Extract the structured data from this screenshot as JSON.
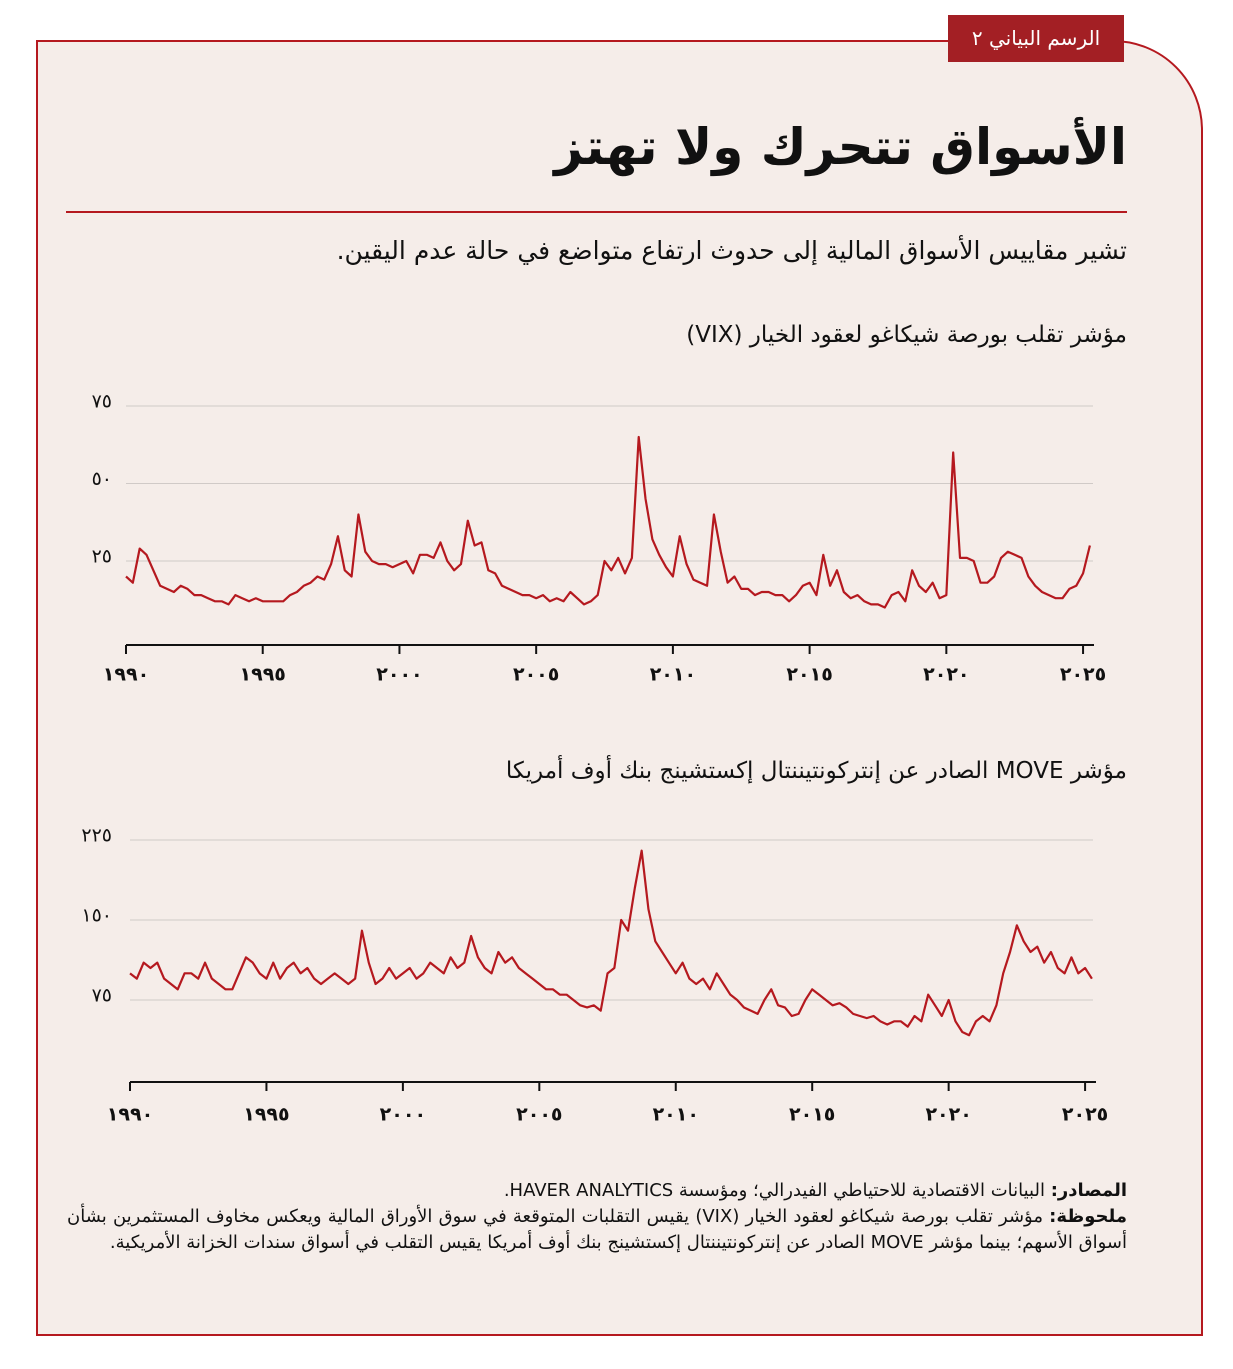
{
  "header": {
    "tab": "الرسم البياني ٢",
    "title": "الأسواق تتحرك ولا تهتز",
    "subtitle": "تشير مقاييس الأسواق المالية إلى حدوث ارتفاع متواضع في حالة عدم اليقين."
  },
  "chart_data": [
    {
      "type": "line",
      "title": "مؤشر تقلب بورصة شيكاغو لعقود الخيار (VIX)",
      "color": "#b5191f",
      "grid": true,
      "xlim": [
        1990,
        2025.4
      ],
      "ylim": [
        0,
        80
      ],
      "xticks": [
        {
          "value": 1990,
          "label": "١٩٩٠"
        },
        {
          "value": 1995,
          "label": "١٩٩٥"
        },
        {
          "value": 2000,
          "label": "٢٠٠٠"
        },
        {
          "value": 2005,
          "label": "٢٠٠٥"
        },
        {
          "value": 2010,
          "label": "٢٠١٠"
        },
        {
          "value": 2015,
          "label": "٢٠١٥"
        },
        {
          "value": 2020,
          "label": "٢٠٢٠"
        },
        {
          "value": 2025,
          "label": "٢٠٢٥"
        }
      ],
      "yticks": [
        {
          "value": 25,
          "label": "٢٥"
        },
        {
          "value": 50,
          "label": "٥٠"
        },
        {
          "value": 75,
          "label": "٧٥"
        }
      ],
      "x": [
        1990,
        1990.25,
        1990.5,
        1990.75,
        1991,
        1991.25,
        1991.5,
        1991.75,
        1992,
        1992.25,
        1992.5,
        1992.75,
        1993,
        1993.25,
        1993.5,
        1993.75,
        1994,
        1994.25,
        1994.5,
        1994.75,
        1995,
        1995.25,
        1995.5,
        1995.75,
        1996,
        1996.25,
        1996.5,
        1996.75,
        1997,
        1997.25,
        1997.5,
        1997.75,
        1998,
        1998.25,
        1998.5,
        1998.75,
        1999,
        1999.25,
        1999.5,
        1999.75,
        2000,
        2000.25,
        2000.5,
        2000.75,
        2001,
        2001.25,
        2001.5,
        2001.75,
        2002,
        2002.25,
        2002.5,
        2002.75,
        2003,
        2003.25,
        2003.5,
        2003.75,
        2004,
        2004.25,
        2004.5,
        2004.75,
        2005,
        2005.25,
        2005.5,
        2005.75,
        2006,
        2006.25,
        2006.5,
        2006.75,
        2007,
        2007.25,
        2007.5,
        2007.75,
        2008,
        2008.25,
        2008.5,
        2008.75,
        2009,
        2009.25,
        2009.5,
        2009.75,
        2010,
        2010.25,
        2010.5,
        2010.75,
        2011,
        2011.25,
        2011.5,
        2011.75,
        2012,
        2012.25,
        2012.5,
        2012.75,
        2013,
        2013.25,
        2013.5,
        2013.75,
        2014,
        2014.25,
        2014.5,
        2014.75,
        2015,
        2015.25,
        2015.5,
        2015.75,
        2016,
        2016.25,
        2016.5,
        2016.75,
        2017,
        2017.25,
        2017.5,
        2017.75,
        2018,
        2018.25,
        2018.5,
        2018.75,
        2019,
        2019.25,
        2019.5,
        2019.75,
        2020,
        2020.25,
        2020.5,
        2020.75,
        2021,
        2021.25,
        2021.5,
        2021.75,
        2022,
        2022.25,
        2022.5,
        2022.75,
        2023,
        2023.25,
        2023.5,
        2023.75,
        2024,
        2024.25,
        2024.5,
        2024.75,
        2025,
        2025.25
      ],
      "values": [
        20,
        18,
        29,
        27,
        22,
        17,
        16,
        15,
        17,
        16,
        14,
        14,
        13,
        12,
        12,
        11,
        14,
        13,
        12,
        13,
        12,
        12,
        12,
        12,
        14,
        15,
        17,
        18,
        20,
        19,
        24,
        33,
        22,
        20,
        40,
        28,
        25,
        24,
        24,
        23,
        24,
        25,
        21,
        27,
        27,
        26,
        31,
        25,
        22,
        24,
        38,
        30,
        31,
        22,
        21,
        17,
        16,
        15,
        14,
        14,
        13,
        14,
        12,
        13,
        12,
        15,
        13,
        11,
        12,
        14,
        25,
        22,
        26,
        21,
        26,
        65,
        45,
        32,
        27,
        23,
        20,
        33,
        24,
        19,
        18,
        17,
        40,
        28,
        18,
        20,
        16,
        16,
        14,
        15,
        15,
        14,
        14,
        12,
        14,
        17,
        18,
        14,
        27,
        17,
        22,
        15,
        13,
        14,
        12,
        11,
        11,
        10,
        14,
        15,
        12,
        22,
        17,
        15,
        18,
        13,
        14,
        60,
        26,
        26,
        25,
        18,
        18,
        20,
        26,
        28,
        27,
        26,
        20,
        17,
        15,
        14,
        13,
        13,
        16,
        17,
        21,
        30
      ]
    },
    {
      "type": "line",
      "title": "مؤشر MOVE الصادر عن إنتركونتيننتال إكستشينج بنك أوف أمريكا",
      "color": "#b5191f",
      "grid": true,
      "xlim": [
        1990,
        2025.4
      ],
      "ylim": [
        0,
        240
      ],
      "xticks": [
        {
          "value": 1990,
          "label": "١٩٩٠"
        },
        {
          "value": 1995,
          "label": "١٩٩٥"
        },
        {
          "value": 2000,
          "label": "٢٠٠٠"
        },
        {
          "value": 2005,
          "label": "٢٠٠٥"
        },
        {
          "value": 2010,
          "label": "٢٠١٠"
        },
        {
          "value": 2015,
          "label": "٢٠١٥"
        },
        {
          "value": 2020,
          "label": "٢٠٢٠"
        },
        {
          "value": 2025,
          "label": "٢٠٢٥"
        }
      ],
      "yticks": [
        {
          "value": 75,
          "label": "٧٥"
        },
        {
          "value": 150,
          "label": "١٥٠"
        },
        {
          "value": 225,
          "label": "٢٢٥"
        }
      ],
      "x": [
        1990,
        1990.25,
        1990.5,
        1990.75,
        1991,
        1991.25,
        1991.5,
        1991.75,
        1992,
        1992.25,
        1992.5,
        1992.75,
        1993,
        1993.25,
        1993.5,
        1993.75,
        1994,
        1994.25,
        1994.5,
        1994.75,
        1995,
        1995.25,
        1995.5,
        1995.75,
        1996,
        1996.25,
        1996.5,
        1996.75,
        1997,
        1997.25,
        1997.5,
        1997.75,
        1998,
        1998.25,
        1998.5,
        1998.75,
        1999,
        1999.25,
        1999.5,
        1999.75,
        2000,
        2000.25,
        2000.5,
        2000.75,
        2001,
        2001.25,
        2001.5,
        2001.75,
        2002,
        2002.25,
        2002.5,
        2002.75,
        2003,
        2003.25,
        2003.5,
        2003.75,
        2004,
        2004.25,
        2004.5,
        2004.75,
        2005,
        2005.25,
        2005.5,
        2005.75,
        2006,
        2006.25,
        2006.5,
        2006.75,
        2007,
        2007.25,
        2007.5,
        2007.75,
        2008,
        2008.25,
        2008.5,
        2008.75,
        2009,
        2009.25,
        2009.5,
        2009.75,
        2010,
        2010.25,
        2010.5,
        2010.75,
        2011,
        2011.25,
        2011.5,
        2011.75,
        2012,
        2012.25,
        2012.5,
        2012.75,
        2013,
        2013.25,
        2013.5,
        2013.75,
        2014,
        2014.25,
        2014.5,
        2014.75,
        2015,
        2015.25,
        2015.5,
        2015.75,
        2016,
        2016.25,
        2016.5,
        2016.75,
        2017,
        2017.25,
        2017.5,
        2017.75,
        2018,
        2018.25,
        2018.5,
        2018.75,
        2019,
        2019.25,
        2019.5,
        2019.75,
        2020,
        2020.25,
        2020.5,
        2020.75,
        2021,
        2021.25,
        2021.5,
        2021.75,
        2022,
        2022.25,
        2022.5,
        2022.75,
        2023,
        2023.25,
        2023.5,
        2023.75,
        2024,
        2024.25,
        2024.5,
        2024.75,
        2025,
        2025.25
      ],
      "values": [
        100,
        95,
        110,
        105,
        110,
        95,
        90,
        85,
        100,
        100,
        95,
        110,
        95,
        90,
        85,
        85,
        100,
        115,
        110,
        100,
        95,
        110,
        95,
        105,
        110,
        100,
        105,
        95,
        90,
        95,
        100,
        95,
        90,
        95,
        140,
        110,
        90,
        95,
        105,
        95,
        100,
        105,
        95,
        100,
        110,
        105,
        100,
        115,
        105,
        110,
        135,
        115,
        105,
        100,
        120,
        110,
        115,
        105,
        100,
        95,
        90,
        85,
        85,
        80,
        80,
        75,
        70,
        68,
        70,
        65,
        100,
        105,
        150,
        140,
        180,
        215,
        160,
        130,
        120,
        110,
        100,
        110,
        95,
        90,
        95,
        85,
        100,
        90,
        80,
        75,
        68,
        65,
        62,
        75,
        85,
        70,
        68,
        60,
        62,
        75,
        85,
        80,
        75,
        70,
        72,
        68,
        62,
        60,
        58,
        60,
        55,
        52,
        55,
        55,
        50,
        60,
        55,
        80,
        70,
        60,
        75,
        55,
        45,
        42,
        55,
        60,
        55,
        70,
        100,
        120,
        145,
        130,
        120,
        125,
        110,
        120,
        105,
        100,
        115,
        100,
        105,
        95
      ]
    }
  ],
  "footer": {
    "sources_label": "المصادر:",
    "sources_text": "البيانات الاقتصادية للاحتياطي الفيدرالي؛ ومؤسسة HAVER ANALYTICS.",
    "note_label": "ملحوظة:",
    "note_text": "مؤشر تقلب بورصة شيكاغو لعقود الخيار (VIX) يقيس التقلبات المتوقعة في سوق الأوراق المالية ويعكس مخاوف المستثمرين بشأن أسواق الأسهم؛ بينما مؤشر MOVE الصادر عن إنتركونتيننتال إكستشينج بنك أوف أمريكا يقيس التقلب في أسواق سندات الخزانة الأمريكية."
  }
}
